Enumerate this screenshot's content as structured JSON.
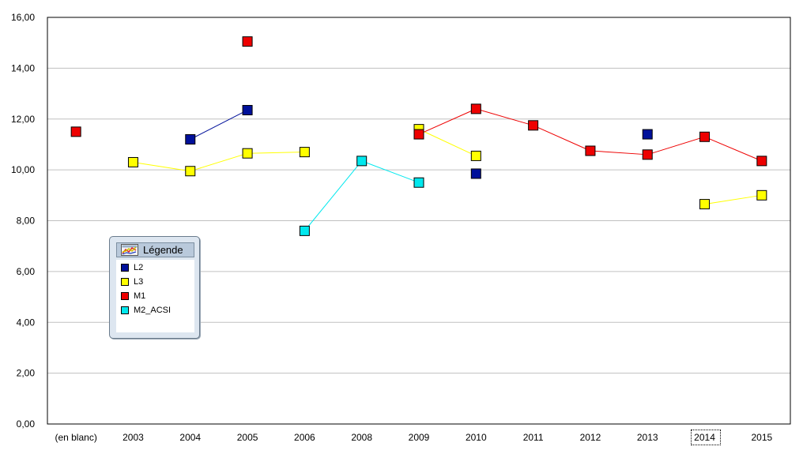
{
  "chart_data": {
    "type": "line",
    "categories": [
      "(en blanc)",
      "2003",
      "2004",
      "2005",
      "2006",
      "2008",
      "2009",
      "2010",
      "2011",
      "2012",
      "2013",
      "2014",
      "2015"
    ],
    "y_tick_labels": [
      "0,00",
      "2,00",
      "4,00",
      "6,00",
      "8,00",
      "10,00",
      "12,00",
      "14,00",
      "16,00"
    ],
    "ylim": [
      0,
      16
    ],
    "grid": true,
    "legend_title": "Légende",
    "legend_position": "left",
    "series": [
      {
        "name": "L2",
        "color": "#00109a",
        "values": [
          null,
          null,
          11.2,
          12.35,
          null,
          null,
          null,
          9.85,
          null,
          null,
          11.4,
          null,
          null
        ]
      },
      {
        "name": "L3",
        "color": "#ffff00",
        "values": [
          null,
          10.3,
          9.95,
          10.65,
          10.7,
          null,
          11.6,
          10.55,
          null,
          null,
          null,
          8.65,
          9.0
        ]
      },
      {
        "name": "M1",
        "color": "#ee0000",
        "values": [
          11.5,
          null,
          null,
          15.05,
          null,
          null,
          11.4,
          12.4,
          11.75,
          10.75,
          10.6,
          11.3,
          10.35
        ]
      },
      {
        "name": "M2_ACSI",
        "color": "#00e8ee",
        "values": [
          null,
          null,
          null,
          null,
          7.6,
          10.35,
          9.5,
          null,
          null,
          null,
          null,
          null,
          null
        ]
      }
    ]
  }
}
